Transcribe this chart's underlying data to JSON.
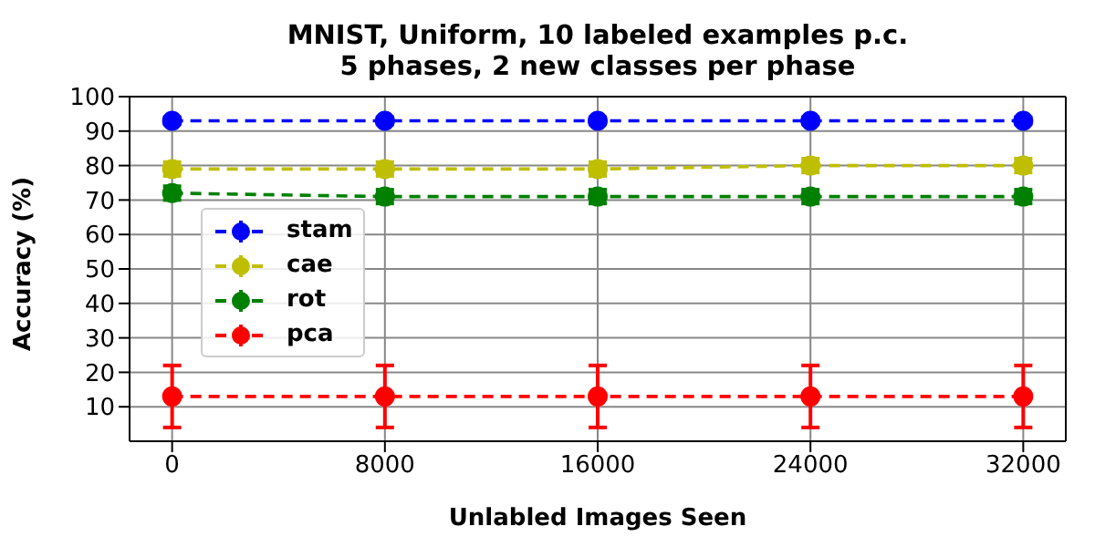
{
  "chart_data": {
    "type": "line",
    "title": "MNIST, Uniform, 10 labeled examples p.c.\n5 phases, 2 new classes per phase",
    "xlabel": "Unlabled Images Seen",
    "ylabel": "Accuracy (%)",
    "x": [
      0,
      8000,
      16000,
      24000,
      32000
    ],
    "series": [
      {
        "name": "stam",
        "color": "#0000ff",
        "values": [
          93,
          93,
          93,
          93,
          93
        ],
        "errors": [
          1,
          1,
          1,
          1,
          1
        ]
      },
      {
        "name": "cae",
        "color": "#bfbf00",
        "values": [
          79,
          79,
          79,
          80,
          80
        ],
        "errors": [
          2,
          2,
          2,
          2,
          2
        ]
      },
      {
        "name": "rot",
        "color": "#008000",
        "values": [
          72,
          71,
          71,
          71,
          71
        ],
        "errors": [
          2,
          2,
          2,
          2,
          2
        ]
      },
      {
        "name": "pca",
        "color": "#ff0000",
        "values": [
          13,
          13,
          13,
          13,
          13
        ],
        "errors": [
          9,
          9,
          9,
          9,
          9
        ]
      }
    ],
    "xlim": [
      -1600,
      33600
    ],
    "xticks": [
      0,
      8000,
      16000,
      24000,
      32000
    ],
    "ylim": [
      0,
      100
    ],
    "yticks": [
      10,
      20,
      30,
      40,
      50,
      60,
      70,
      80,
      90,
      100
    ],
    "grid": true,
    "legend": "center left",
    "marker": "circle",
    "line_style": "dashed"
  }
}
